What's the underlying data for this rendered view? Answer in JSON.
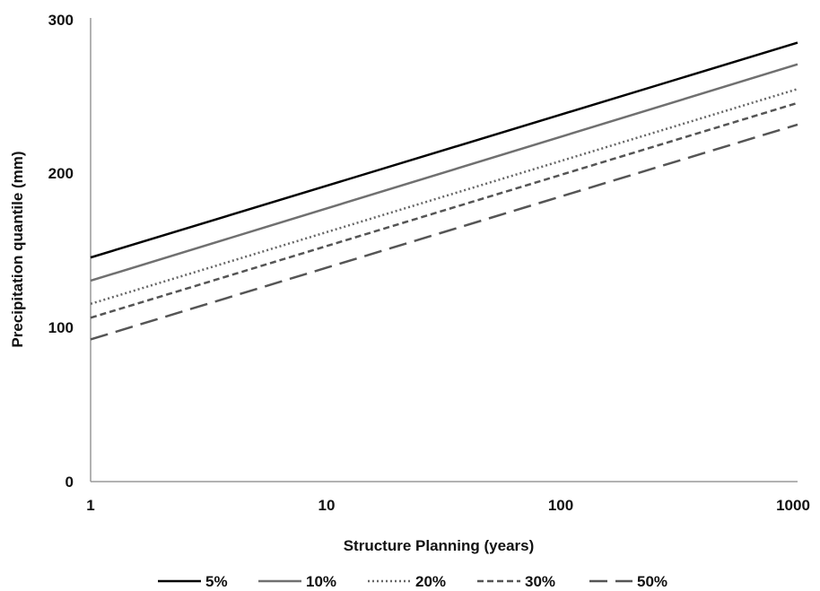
{
  "chart_data": {
    "type": "line",
    "title": "",
    "xlabel": "Structure Planning (years)",
    "ylabel": "Precipitation quantile (mm)",
    "x_scale": "log",
    "xlim": [
      1,
      1000
    ],
    "ylim": [
      0,
      300
    ],
    "x_ticks": [
      "1",
      "10",
      "100",
      "1000"
    ],
    "y_ticks": [
      "0",
      "100",
      "200",
      "300"
    ],
    "grid": false,
    "legend_position": "bottom",
    "x": [
      1,
      1000
    ],
    "series": [
      {
        "name": "5%",
        "values": [
          145,
          284
        ],
        "color": "#000000",
        "dash": "solid"
      },
      {
        "name": "10%",
        "values": [
          130,
          270
        ],
        "color": "#707070",
        "dash": "solid"
      },
      {
        "name": "20%",
        "values": [
          115,
          254
        ],
        "color": "#666666",
        "dash": "dotted"
      },
      {
        "name": "30%",
        "values": [
          106,
          245
        ],
        "color": "#555555",
        "dash": "dashed"
      },
      {
        "name": "50%",
        "values": [
          92,
          231
        ],
        "color": "#555555",
        "dash": "longdash"
      }
    ]
  }
}
